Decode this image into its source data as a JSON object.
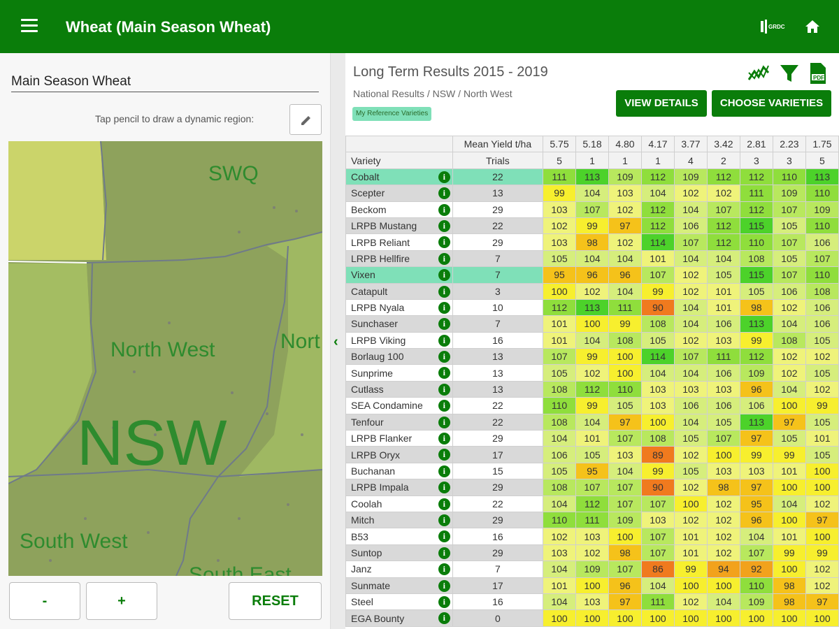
{
  "app": {
    "title": "Wheat (Main Season Wheat)"
  },
  "left_panel": {
    "region_value": "Main Season Wheat",
    "draw_hint": "Tap pencil to draw a dynamic region:",
    "map_labels": {
      "swq": "SWQ",
      "north_west": "North West",
      "north_cut": "Nort",
      "nsw": "NSW",
      "south_west": "South West",
      "south_east_cut": "South East"
    },
    "zoom_out_label": "-",
    "zoom_in_label": "+",
    "reset_label": "RESET"
  },
  "right_panel": {
    "title": "Long Term Results 2015 - 2019",
    "breadcrumb": "National Results / NSW / North West",
    "chip": "My Reference Varieties",
    "view_details": "VIEW DETAILS",
    "choose_varieties": "CHOOSE VARIETIES",
    "icons": [
      "trend-icon",
      "filter-icon",
      "pdf-icon"
    ]
  },
  "table": {
    "header_mean_yield": "Mean Yield t/ha",
    "header_variety": "Variety",
    "header_trials": "Trials",
    "env_yields": [
      "5.75",
      "5.18",
      "4.80",
      "4.17",
      "3.77",
      "3.42",
      "2.81",
      "2.23",
      "1.75"
    ],
    "env_trials": [
      "5",
      "1",
      "1",
      "1",
      "4",
      "2",
      "3",
      "3",
      "5"
    ],
    "rows": [
      {
        "name": "Cobalt",
        "trials": "22",
        "values": [
          "111",
          "113",
          "109",
          "112",
          "109",
          "112",
          "112",
          "110",
          "113"
        ],
        "highlight": true
      },
      {
        "name": "Scepter",
        "trials": "13",
        "values": [
          "99",
          "104",
          "103",
          "104",
          "102",
          "102",
          "111",
          "109",
          "110"
        ]
      },
      {
        "name": "Beckom",
        "trials": "29",
        "values": [
          "103",
          "107",
          "102",
          "112",
          "104",
          "107",
          "112",
          "107",
          "109"
        ]
      },
      {
        "name": "LRPB Mustang",
        "trials": "22",
        "values": [
          "102",
          "99",
          "97",
          "112",
          "106",
          "112",
          "115",
          "105",
          "110"
        ]
      },
      {
        "name": "LRPB Reliant",
        "trials": "29",
        "values": [
          "103",
          "98",
          "102",
          "114",
          "107",
          "112",
          "110",
          "107",
          "106"
        ]
      },
      {
        "name": "LRPB Hellfire",
        "trials": "7",
        "values": [
          "105",
          "104",
          "104",
          "101",
          "104",
          "104",
          "108",
          "105",
          "107"
        ]
      },
      {
        "name": "Vixen",
        "trials": "7",
        "values": [
          "95",
          "96",
          "96",
          "107",
          "102",
          "105",
          "115",
          "107",
          "110"
        ],
        "highlight": true
      },
      {
        "name": "Catapult",
        "trials": "3",
        "values": [
          "100",
          "102",
          "104",
          "99",
          "102",
          "101",
          "105",
          "106",
          "108"
        ]
      },
      {
        "name": "LRPB Nyala",
        "trials": "10",
        "values": [
          "112",
          "113",
          "111",
          "90",
          "104",
          "101",
          "98",
          "102",
          "106"
        ]
      },
      {
        "name": "Sunchaser",
        "trials": "7",
        "values": [
          "101",
          "100",
          "99",
          "108",
          "104",
          "106",
          "113",
          "104",
          "106"
        ]
      },
      {
        "name": "LRPB Viking",
        "trials": "16",
        "values": [
          "101",
          "104",
          "108",
          "105",
          "102",
          "103",
          "99",
          "108",
          "105"
        ]
      },
      {
        "name": "Borlaug 100",
        "trials": "13",
        "values": [
          "107",
          "99",
          "100",
          "114",
          "107",
          "111",
          "112",
          "102",
          "102"
        ]
      },
      {
        "name": "Sunprime",
        "trials": "13",
        "values": [
          "105",
          "102",
          "100",
          "104",
          "104",
          "106",
          "109",
          "102",
          "105"
        ]
      },
      {
        "name": "Cutlass",
        "trials": "13",
        "values": [
          "108",
          "112",
          "110",
          "103",
          "103",
          "103",
          "96",
          "104",
          "102"
        ]
      },
      {
        "name": "SEA Condamine",
        "trials": "22",
        "values": [
          "110",
          "99",
          "105",
          "103",
          "106",
          "106",
          "106",
          "100",
          "99"
        ]
      },
      {
        "name": "Tenfour",
        "trials": "22",
        "values": [
          "108",
          "104",
          "97",
          "100",
          "104",
          "105",
          "113",
          "97",
          "105"
        ]
      },
      {
        "name": "LRPB Flanker",
        "trials": "29",
        "values": [
          "104",
          "101",
          "107",
          "108",
          "105",
          "107",
          "97",
          "105",
          "101"
        ]
      },
      {
        "name": "LRPB Oryx",
        "trials": "17",
        "values": [
          "106",
          "105",
          "103",
          "89",
          "102",
          "100",
          "99",
          "99",
          "105"
        ]
      },
      {
        "name": "Buchanan",
        "trials": "15",
        "values": [
          "105",
          "95",
          "104",
          "99",
          "105",
          "103",
          "103",
          "101",
          "100"
        ]
      },
      {
        "name": "LRPB Impala",
        "trials": "29",
        "values": [
          "108",
          "107",
          "107",
          "90",
          "102",
          "98",
          "97",
          "100",
          "100"
        ]
      },
      {
        "name": "Coolah",
        "trials": "22",
        "values": [
          "104",
          "112",
          "107",
          "107",
          "100",
          "102",
          "95",
          "104",
          "102"
        ]
      },
      {
        "name": "Mitch",
        "trials": "29",
        "values": [
          "110",
          "111",
          "109",
          "103",
          "102",
          "102",
          "96",
          "100",
          "97"
        ]
      },
      {
        "name": "B53",
        "trials": "16",
        "values": [
          "102",
          "103",
          "100",
          "107",
          "101",
          "102",
          "104",
          "101",
          "100"
        ]
      },
      {
        "name": "Suntop",
        "trials": "29",
        "values": [
          "103",
          "102",
          "98",
          "107",
          "101",
          "102",
          "107",
          "99",
          "99"
        ]
      },
      {
        "name": "Janz",
        "trials": "7",
        "values": [
          "104",
          "109",
          "107",
          "86",
          "99",
          "94",
          "92",
          "100",
          "102"
        ]
      },
      {
        "name": "Sunmate",
        "trials": "17",
        "values": [
          "101",
          "100",
          "96",
          "104",
          "100",
          "100",
          "110",
          "98",
          "102"
        ]
      },
      {
        "name": "Steel",
        "trials": "16",
        "values": [
          "104",
          "103",
          "97",
          "111",
          "102",
          "104",
          "109",
          "98",
          "97"
        ]
      },
      {
        "name": "EGA Bounty",
        "trials": "0",
        "values": [
          "100",
          "100",
          "100",
          "100",
          "100",
          "100",
          "100",
          "100",
          "100"
        ]
      }
    ]
  },
  "colors": {
    "appbar": "#0a7d0a",
    "highlight_row": "#7fe0b8"
  }
}
